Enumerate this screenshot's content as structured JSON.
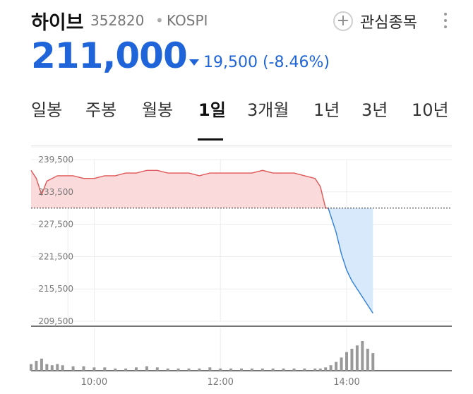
{
  "stock": {
    "name": "하이브",
    "code": "352820",
    "separator": "•",
    "market": "KOSPI",
    "price": "211,000",
    "change": "19,500 (-8.46%)",
    "change_color": "#1f64d9"
  },
  "actions": {
    "watch_label": "관심종목",
    "plus_icon": "+"
  },
  "tabs": [
    {
      "label": "일봉"
    },
    {
      "label": "주봉"
    },
    {
      "label": "월봉"
    },
    {
      "label": "1일",
      "active": true
    },
    {
      "label": "3개월"
    },
    {
      "label": "1년"
    },
    {
      "label": "3년"
    },
    {
      "label": "10년"
    }
  ],
  "chart_data": {
    "type": "line",
    "reference_price": 230500,
    "ylim": [
      209500,
      239500
    ],
    "y_ticks": [
      "239,500",
      "233,500",
      "227,500",
      "221,500",
      "215,500",
      "209,500"
    ],
    "x_ticks": [
      "10:00",
      "12:00",
      "14:00"
    ],
    "colors": {
      "up": "#e05858",
      "down": "#2f7fe0",
      "up_fill": "#fadada",
      "down_fill": "#d7e9fb",
      "volume": "#999999"
    },
    "series": [
      {
        "x": [
          "9:00",
          "9:05",
          "9:10",
          "9:15",
          "9:20",
          "9:25",
          "9:30",
          "9:40",
          "9:50",
          "10:00",
          "10:10",
          "10:20",
          "10:30",
          "10:40",
          "10:50",
          "11:00",
          "11:10",
          "11:20",
          "11:30",
          "11:40",
          "11:50",
          "12:00",
          "12:10",
          "12:20",
          "12:30",
          "12:40",
          "12:50",
          "13:00",
          "13:10",
          "13:20",
          "13:30",
          "13:35",
          "13:40",
          "13:45",
          "13:50",
          "13:55",
          "14:00",
          "14:05",
          "14:10",
          "14:15",
          "14:20",
          "14:25"
        ],
        "values": [
          237500,
          236000,
          233000,
          235500,
          236000,
          236500,
          236500,
          236500,
          236000,
          236000,
          236500,
          236500,
          237000,
          237000,
          237500,
          237500,
          237000,
          237000,
          237000,
          236500,
          237000,
          237000,
          237000,
          237000,
          237000,
          237500,
          237000,
          237000,
          237000,
          236500,
          236000,
          234500,
          230500,
          229000,
          226000,
          222000,
          219000,
          217000,
          215500,
          214000,
          212500,
          211000
        ]
      }
    ],
    "volume": [
      6,
      9,
      11,
      6,
      5,
      6,
      5,
      4,
      4,
      3,
      3,
      2,
      2,
      3,
      4,
      3,
      2,
      2,
      2,
      2,
      3,
      2,
      2,
      2,
      2,
      2,
      2,
      2,
      2,
      2,
      2,
      2,
      3,
      5,
      8,
      12,
      17,
      20,
      23,
      27,
      20,
      16
    ]
  }
}
